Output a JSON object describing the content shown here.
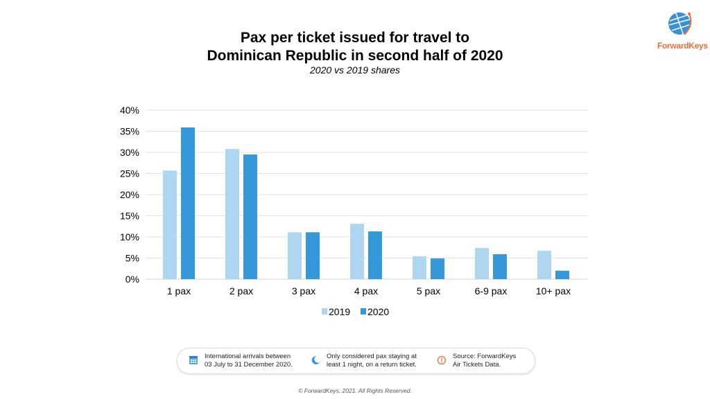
{
  "chart_data": {
    "type": "bar",
    "title_lines": [
      "Pax per ticket issued for travel to",
      "Dominican Republic in second half of 2020"
    ],
    "subtitle": "2020 vs 2019 shares",
    "categories": [
      "1 pax",
      "2 pax",
      "3 pax",
      "4 pax",
      "5 pax",
      "6-9 pax",
      "10+ pax"
    ],
    "series": [
      {
        "name": "2019",
        "color": "#aed6f1",
        "values": [
          25.7,
          30.8,
          11.1,
          13.1,
          5.4,
          7.4,
          6.7
        ]
      },
      {
        "name": "2020",
        "color": "#3498db",
        "values": [
          35.9,
          29.5,
          11.1,
          11.3,
          4.9,
          5.9,
          2.0
        ]
      }
    ],
    "ylim": [
      0,
      40
    ],
    "yticks": [
      "0%",
      "5%",
      "10%",
      "15%",
      "20%",
      "25%",
      "30%",
      "35%",
      "40%"
    ],
    "grid": true,
    "legend": "bottom"
  },
  "logo": {
    "text": "ForwardKeys"
  },
  "notes": [
    {
      "icon": "calendar-icon",
      "lines": [
        "International arrivals between",
        "03 July to 31 December 2020."
      ]
    },
    {
      "icon": "moon-icon",
      "lines": [
        "Only considered pax staying at",
        "least 1 night, on a return ticket."
      ]
    },
    {
      "icon": "alert-icon",
      "lines": [
        "Source: ForwardKeys",
        "Air Tickets Data."
      ]
    }
  ],
  "copyright": "© ForwardKeys, 2021. All Rights Reserved."
}
